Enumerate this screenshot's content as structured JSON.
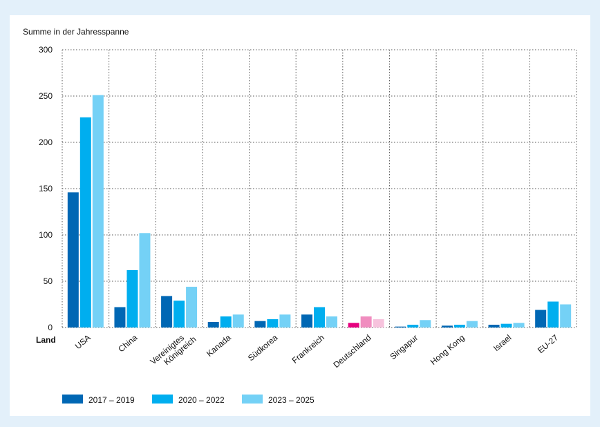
{
  "chart_data": {
    "type": "bar",
    "ylabel": "Summe in der Jahresspanne",
    "xlabel": "Land",
    "ylim": [
      0,
      300
    ],
    "yticks": [
      0,
      50,
      100,
      150,
      200,
      250,
      300
    ],
    "grid": true,
    "legend_position": "bottom-left",
    "categories": [
      "USA",
      "China",
      "Vereinigtes Königreich",
      "Kanada",
      "Südkorea",
      "Frankreich",
      "Deutschland",
      "Singapur",
      "Hong Kong",
      "Israel",
      "EU-27"
    ],
    "series": [
      {
        "name": "2017 – 2019",
        "color": "#0067b4",
        "values": [
          146,
          22,
          34,
          6,
          7,
          14,
          5,
          1,
          2,
          3,
          19
        ]
      },
      {
        "name": "2020 – 2022",
        "color": "#00aeef",
        "values": [
          227,
          62,
          29,
          12,
          9,
          22,
          12,
          3,
          3,
          4,
          28
        ]
      },
      {
        "name": "2023 – 2025",
        "color": "#74d1f6",
        "values": [
          251,
          102,
          44,
          14,
          14,
          12,
          9,
          8,
          7,
          5,
          25
        ]
      }
    ],
    "highlight": {
      "category": "Deutschland",
      "colors": [
        "#e6007e",
        "#f08dbf",
        "#f7c3dd"
      ]
    }
  }
}
